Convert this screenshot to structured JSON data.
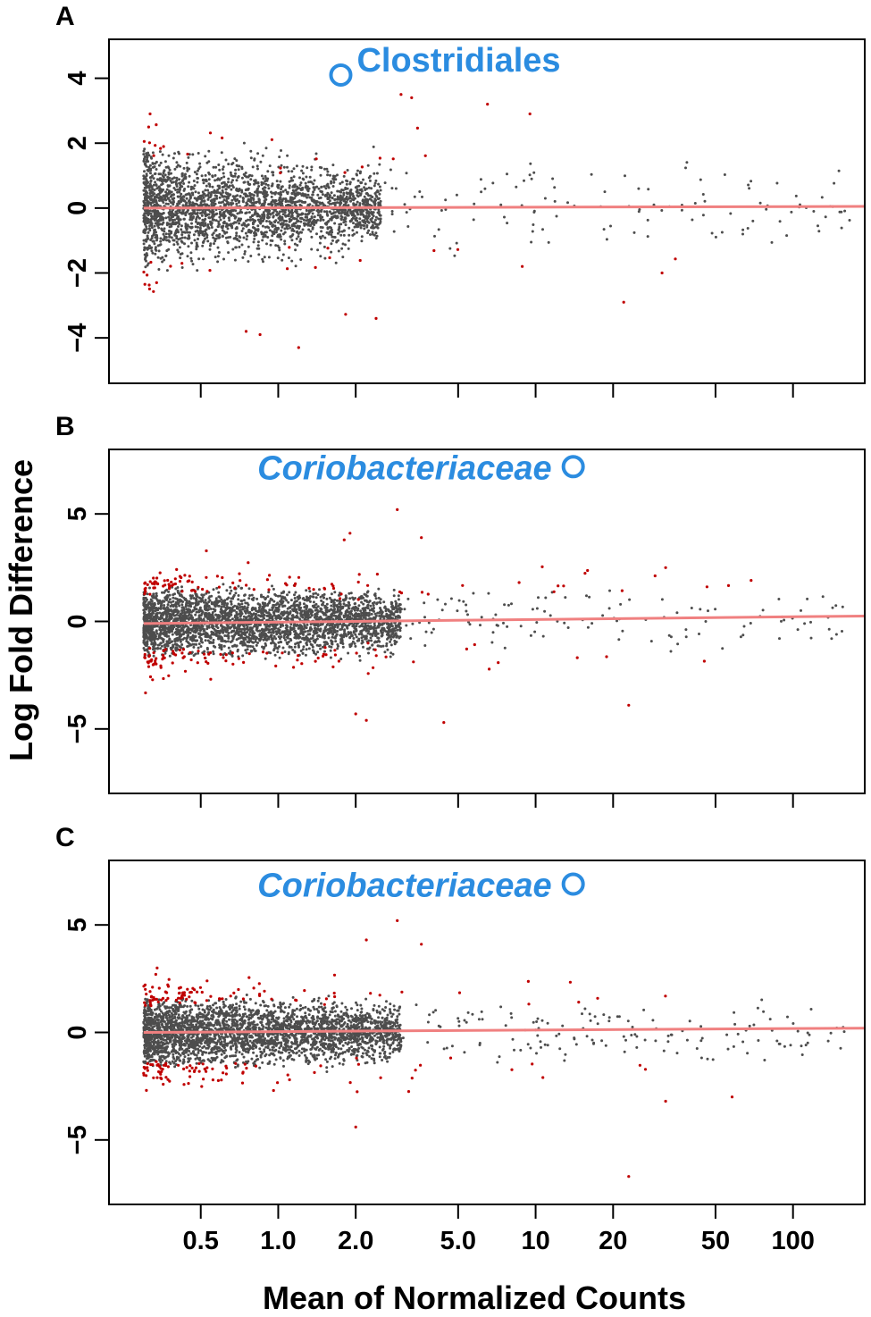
{
  "colors": {
    "nonsignificant": "#4d4d4d",
    "significant": "#c00000",
    "fit_line": "#f08080",
    "annotation": "#2b8ce0",
    "axis": "#000000"
  },
  "ylabel": "Log Fold Difference",
  "xlabel": "Mean of Normalized Counts",
  "chart_data": [
    {
      "type": "scatter",
      "panel": "A",
      "xscale": "log",
      "xlim": [
        0.22,
        190
      ],
      "ylim": [
        -5.4,
        5.2
      ],
      "x_ticks": [
        0.5,
        1.0,
        2.0,
        5.0,
        10,
        20,
        50,
        100
      ],
      "x_tick_labels": [],
      "y_ticks": [
        -4,
        -2,
        0,
        2,
        4
      ],
      "y_tick_labels": [
        "−4",
        "−2",
        "0",
        "2",
        "4"
      ],
      "fit_line": [
        [
          0.3,
          0.0
        ],
        [
          190,
          0.05
        ]
      ],
      "cloud": {
        "n": 2600,
        "x_range": [
          0.3,
          2.5
        ],
        "spread_low": 1.5,
        "spread_high": 0.9,
        "sig_threshold": 1.5,
        "seed": 11
      },
      "scattered": {
        "n": 190,
        "x_range": [
          1.0,
          170
        ],
        "spread_low": 1.8,
        "spread_high": 0.9,
        "sig_threshold": 1.0,
        "seed": 12
      },
      "extra_points": [
        [
          2.4,
          -3.4
        ],
        [
          1.2,
          -4.3
        ],
        [
          0.85,
          -3.9
        ],
        [
          0.75,
          -3.8
        ],
        [
          22,
          -2.9
        ],
        [
          31,
          -2.0
        ],
        [
          3.0,
          3.5
        ],
        [
          3.3,
          3.4
        ],
        [
          6.5,
          3.2
        ],
        [
          9.5,
          2.9
        ]
      ],
      "highlight": {
        "label": "Clostridiales",
        "italic": false,
        "x": 1.75,
        "y": 4.1,
        "label_anchor": "start",
        "label_dx": 18,
        "label_dy": -4
      }
    },
    {
      "type": "scatter",
      "panel": "B",
      "xscale": "log",
      "xlim": [
        0.22,
        190
      ],
      "ylim": [
        -8.0,
        8.0
      ],
      "x_ticks": [
        0.5,
        1.0,
        2.0,
        5.0,
        10,
        20,
        50,
        100
      ],
      "x_tick_labels": [],
      "y_ticks": [
        -5,
        0,
        5
      ],
      "y_tick_labels": [
        "−5",
        "0",
        "5"
      ],
      "fit_line": [
        [
          0.3,
          -0.1
        ],
        [
          190,
          0.25
        ]
      ],
      "cloud": {
        "n": 3200,
        "x_range": [
          0.3,
          3.0
        ],
        "spread_low": 1.7,
        "spread_high": 1.0,
        "sig_threshold": 1.2,
        "seed": 21
      },
      "scattered": {
        "n": 200,
        "x_range": [
          1.5,
          160
        ],
        "spread_low": 2.2,
        "spread_high": 1.0,
        "sig_threshold": 0.9,
        "seed": 22
      },
      "extra_points": [
        [
          2.9,
          5.2
        ],
        [
          4.4,
          -4.7
        ],
        [
          2.2,
          -4.6
        ],
        [
          2.0,
          -4.3
        ],
        [
          23,
          -3.9
        ],
        [
          32,
          2.5
        ],
        [
          3.6,
          3.9
        ],
        [
          1.9,
          4.1
        ]
      ],
      "highlight": {
        "label": "Coriobacteriaceae",
        "italic": true,
        "x": 14.0,
        "y": 7.2,
        "label_anchor": "end",
        "label_dx": -24,
        "label_dy": 14
      }
    },
    {
      "type": "scatter",
      "panel": "C",
      "xscale": "log",
      "xlim": [
        0.22,
        190
      ],
      "ylim": [
        -8.0,
        8.0
      ],
      "x_ticks": [
        0.5,
        1.0,
        2.0,
        5.0,
        10,
        20,
        50,
        100
      ],
      "x_tick_labels": [
        "0.5",
        "1.0",
        "2.0",
        "5.0",
        "10",
        "20",
        "50",
        "100"
      ],
      "y_ticks": [
        -5,
        0,
        5
      ],
      "y_tick_labels": [
        "−5",
        "0",
        "5"
      ],
      "fit_line": [
        [
          0.3,
          0.0
        ],
        [
          190,
          0.2
        ]
      ],
      "cloud": {
        "n": 3200,
        "x_range": [
          0.3,
          3.0
        ],
        "spread_low": 1.7,
        "spread_high": 1.0,
        "sig_threshold": 1.2,
        "seed": 31
      },
      "scattered": {
        "n": 200,
        "x_range": [
          1.5,
          160
        ],
        "spread_low": 2.2,
        "spread_high": 1.0,
        "sig_threshold": 0.9,
        "seed": 32
      },
      "extra_points": [
        [
          2.9,
          5.2
        ],
        [
          2.0,
          -4.4
        ],
        [
          23,
          -6.7
        ],
        [
          32,
          -3.2
        ],
        [
          58,
          -3.0
        ],
        [
          3.6,
          4.1
        ],
        [
          2.2,
          4.3
        ]
      ],
      "highlight": {
        "label": "Coriobacteriaceae",
        "italic": true,
        "x": 14.0,
        "y": 6.9,
        "label_anchor": "end",
        "label_dx": -24,
        "label_dy": 14
      }
    }
  ]
}
